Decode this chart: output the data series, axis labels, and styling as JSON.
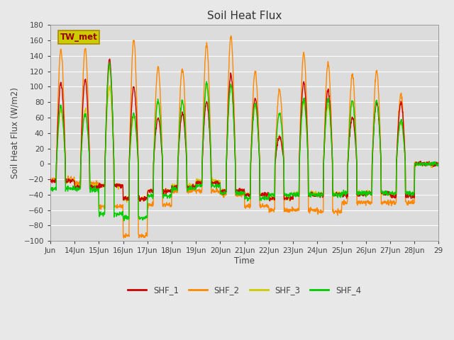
{
  "title": "Soil Heat Flux",
  "xlabel": "Time",
  "ylabel": "Soil Heat Flux (W/m2)",
  "ylim": [
    -100,
    180
  ],
  "yticks": [
    -100,
    -80,
    -60,
    -40,
    -20,
    0,
    20,
    40,
    60,
    80,
    100,
    120,
    140,
    160,
    180
  ],
  "background_color": "#e8e8e8",
  "plot_bg_color": "#dcdcdc",
  "grid_color": "#ffffff",
  "colors": {
    "SHF_1": "#cc0000",
    "SHF_2": "#ff8800",
    "SHF_3": "#cccc00",
    "SHF_4": "#00cc00"
  },
  "legend_label": "TW_met",
  "legend_box_facecolor": "#cccc00",
  "legend_box_edgecolor": "#aa8800",
  "x_start_day": 13,
  "x_end_day": 29,
  "xtick_days": [
    13,
    14,
    15,
    16,
    17,
    18,
    19,
    20,
    21,
    22,
    23,
    24,
    25,
    26,
    27,
    28,
    29
  ],
  "xtick_labels": [
    "Jun",
    "14Jun",
    "15Jun",
    "16Jun",
    "17Jun",
    "18Jun",
    "19Jun",
    "20Jun",
    "21Jun",
    "22Jun",
    "23Jun",
    "24Jun",
    "25Jun",
    "26Jun",
    "27Jun",
    "28Jun",
    "29"
  ],
  "linewidth": 1.0,
  "day_peaks_shf1": [
    0,
    105,
    110,
    135,
    100,
    60,
    65,
    80,
    115,
    85,
    35,
    105,
    95,
    60,
    80,
    80,
    0
  ],
  "day_peaks_shf2": [
    0,
    148,
    150,
    125,
    160,
    125,
    124,
    155,
    165,
    120,
    95,
    143,
    130,
    116,
    120,
    90,
    0
  ],
  "day_peaks_shf3": [
    0,
    70,
    70,
    100,
    60,
    80,
    80,
    100,
    103,
    75,
    35,
    80,
    75,
    80,
    80,
    55,
    0
  ],
  "day_peaks_shf4": [
    0,
    75,
    65,
    130,
    65,
    82,
    82,
    105,
    103,
    78,
    65,
    84,
    84,
    82,
    82,
    57,
    0
  ],
  "day_troughs_shf1": [
    0,
    -22,
    -30,
    -28,
    -45,
    -35,
    -30,
    -25,
    -35,
    -40,
    -45,
    -40,
    -40,
    -40,
    -38,
    -42,
    0
  ],
  "day_troughs_shf2": [
    0,
    -20,
    -25,
    -55,
    -93,
    -53,
    -35,
    -35,
    -40,
    -55,
    -60,
    -60,
    -62,
    -50,
    -50,
    -50,
    0
  ],
  "day_troughs_shf3": [
    0,
    -22,
    -28,
    -28,
    -45,
    -35,
    -28,
    -22,
    -35,
    -40,
    -45,
    -38,
    -38,
    -38,
    -38,
    -40,
    0
  ],
  "day_troughs_shf4": [
    0,
    -32,
    -33,
    -65,
    -70,
    -42,
    -32,
    -28,
    -38,
    -45,
    -40,
    -40,
    -40,
    -38,
    -38,
    -38,
    0
  ]
}
